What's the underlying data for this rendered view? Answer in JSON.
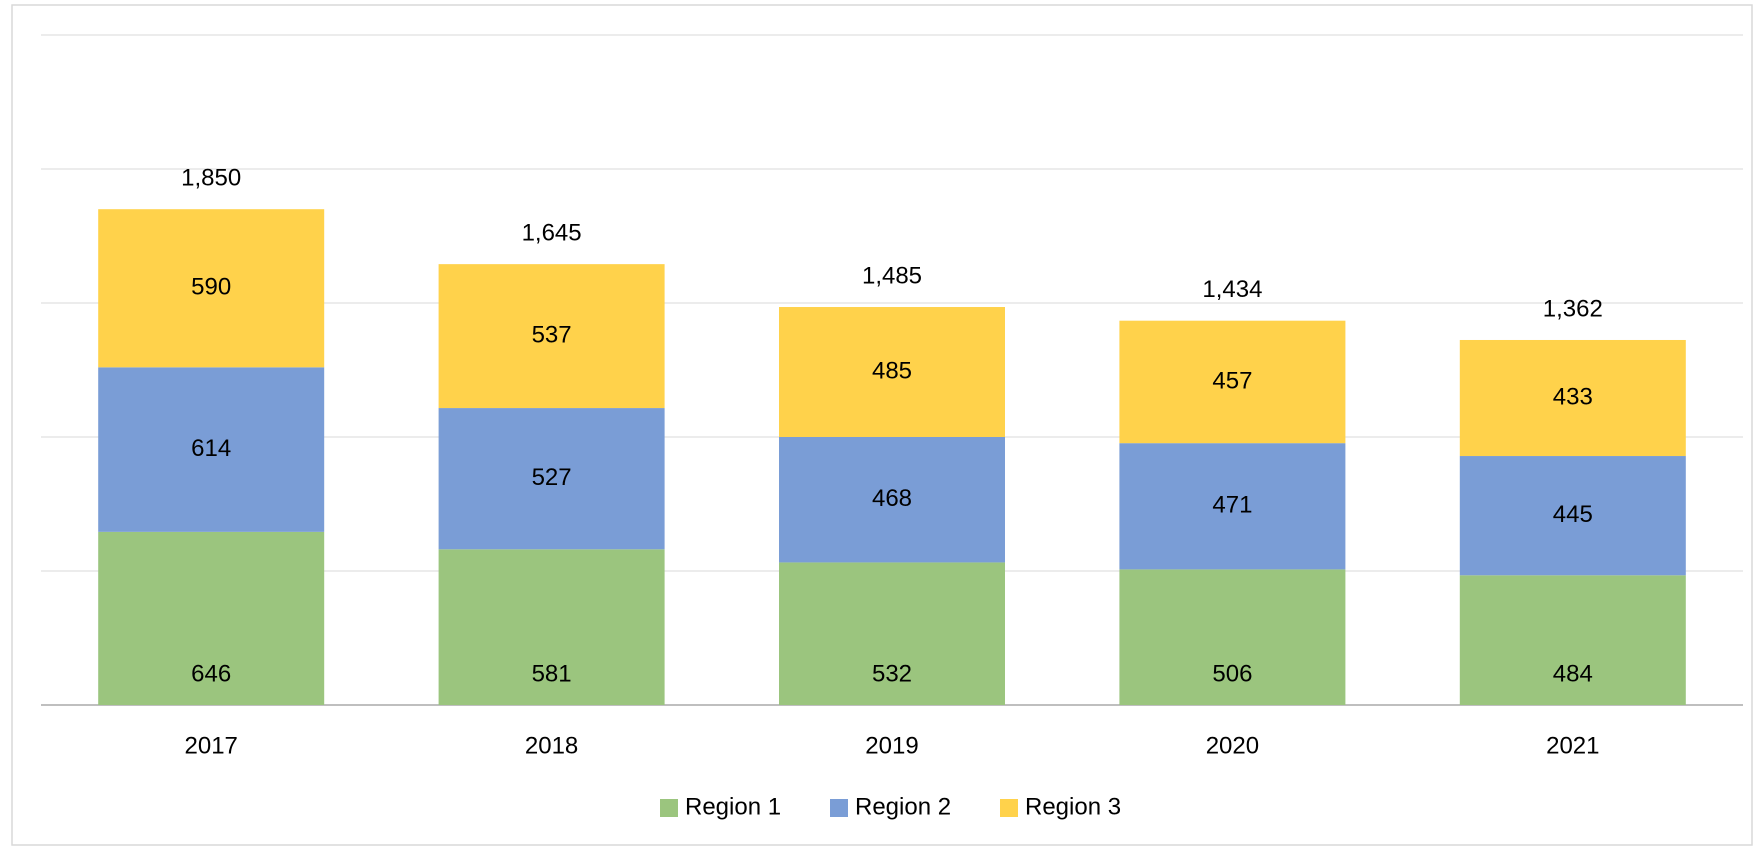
{
  "chart_data": {
    "type": "stacked_bar",
    "categories": [
      "2017",
      "2018",
      "2019",
      "2020",
      "2021"
    ],
    "series": [
      {
        "name": "Region 1",
        "color": "#9bc57e",
        "values": [
          646,
          581,
          532,
          506,
          484
        ]
      },
      {
        "name": "Region 2",
        "color": "#7a9dd6",
        "values": [
          614,
          527,
          468,
          471,
          445
        ]
      },
      {
        "name": "Region 3",
        "color": "#ffd24b",
        "values": [
          590,
          537,
          485,
          457,
          433
        ]
      }
    ],
    "totals": [
      1850,
      1645,
      1485,
      1434,
      1362
    ],
    "total_labels": [
      "1,850",
      "1,645",
      "1,485",
      "1,434",
      "1,362"
    ],
    "ylim": [
      0,
      2500
    ],
    "yticks": [
      0,
      500,
      1000,
      1500,
      2000,
      2500
    ],
    "grid": true,
    "legend": "bottom"
  }
}
